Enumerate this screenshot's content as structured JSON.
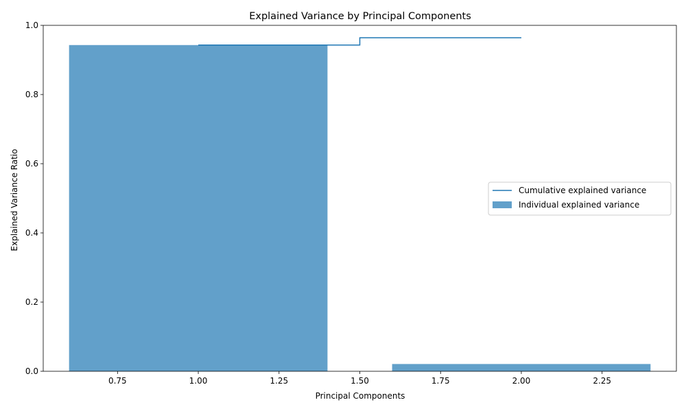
{
  "chart_data": {
    "type": "bar",
    "title": "Explained Variance by Principal Components",
    "xlabel": "Principal Components",
    "ylabel": "Explained Variance Ratio",
    "xlim": [
      0.52,
      2.48
    ],
    "ylim": [
      0.0,
      1.0
    ],
    "xticks": [
      0.75,
      1.0,
      1.25,
      1.5,
      1.75,
      2.0,
      2.25
    ],
    "xtick_labels": [
      "0.75",
      "1.00",
      "1.25",
      "1.50",
      "1.75",
      "2.00",
      "2.25"
    ],
    "yticks": [
      0.0,
      0.2,
      0.4,
      0.6,
      0.8,
      1.0
    ],
    "ytick_labels": [
      "0.0",
      "0.2",
      "0.4",
      "0.6",
      "0.8",
      "1.0"
    ],
    "bars": {
      "name": "Individual explained variance",
      "x": [
        1,
        2
      ],
      "width": 0.8,
      "values": [
        0.943,
        0.021
      ],
      "color": "#1f77b4",
      "alpha": 0.7
    },
    "step_line": {
      "name": "Cumulative explained variance",
      "x": [
        1,
        2
      ],
      "values": [
        0.943,
        0.964
      ],
      "where": "mid",
      "color": "#1f77b4"
    },
    "legend": {
      "position": "center-right",
      "entries": [
        "Cumulative explained variance",
        "Individual explained variance"
      ]
    },
    "grid": false
  }
}
